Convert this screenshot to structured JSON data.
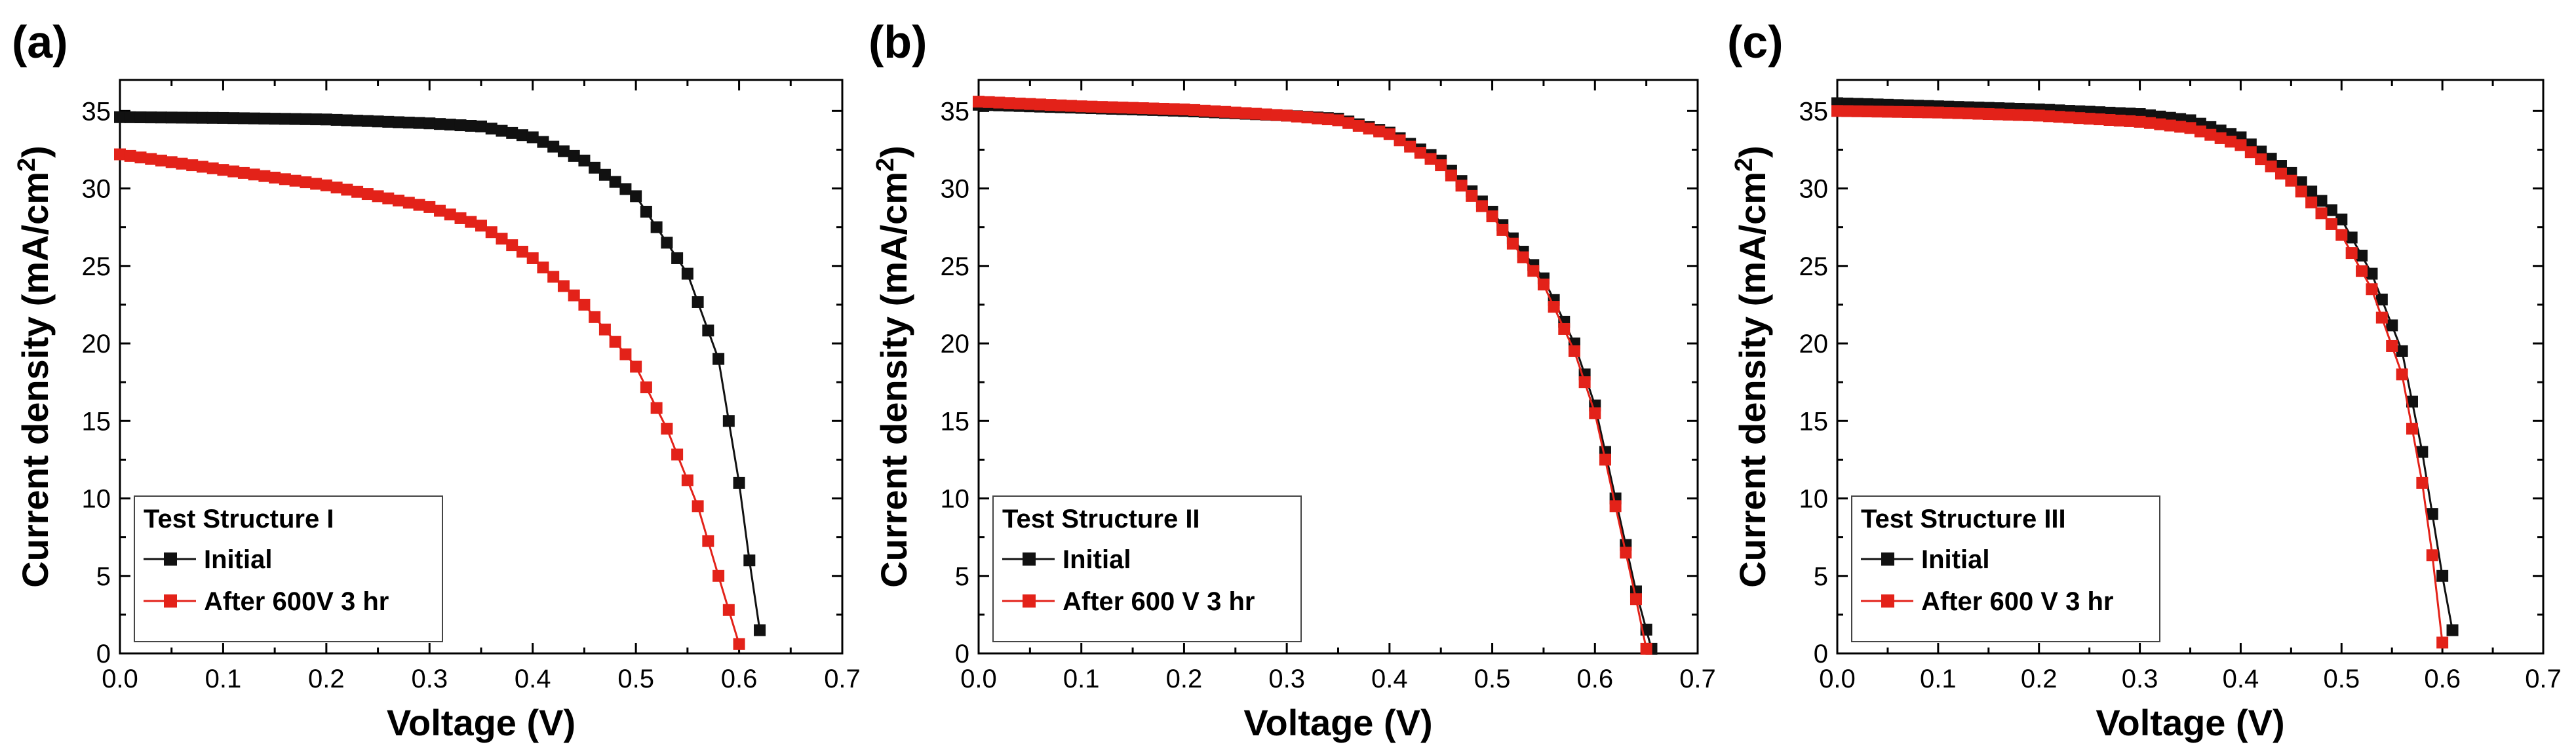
{
  "chart_data": [
    {
      "type": "line",
      "panel_label": "(a)",
      "xlabel": "Voltage (V)",
      "ylabel": "Current density (mA/cm²)",
      "ylabel_main": "Current density (mA/cm",
      "ylabel_sup": "2",
      "ylabel_tail": ")",
      "xlim": [
        0.0,
        0.7
      ],
      "ylim": [
        0,
        37
      ],
      "xticks": [
        0.0,
        0.1,
        0.2,
        0.3,
        0.4,
        0.5,
        0.6,
        0.7
      ],
      "xtick_labels": [
        "0.0",
        "0.1",
        "0.2",
        "0.3",
        "0.4",
        "0.5",
        "0.6",
        "0.7"
      ],
      "yticks": [
        0,
        5,
        10,
        15,
        20,
        25,
        30,
        35
      ],
      "ytick_labels": [
        "0",
        "5",
        "10",
        "15",
        "20",
        "25",
        "30",
        "35"
      ],
      "legend": {
        "title": "Test Structure I",
        "location": "bottom-left",
        "entries": [
          "Initial",
          "After 600V 3 hr"
        ]
      },
      "series": [
        {
          "name": "Initial",
          "color": "#111111",
          "marker": "square",
          "points": [
            [
              0.0,
              34.6
            ],
            [
              0.1,
              34.55
            ],
            [
              0.2,
              34.45
            ],
            [
              0.3,
              34.2
            ],
            [
              0.35,
              34.0
            ],
            [
              0.4,
              33.3
            ],
            [
              0.45,
              31.8
            ],
            [
              0.5,
              29.5
            ],
            [
              0.55,
              24.5
            ],
            [
              0.58,
              19.0
            ],
            [
              0.6,
              11.0
            ],
            [
              0.61,
              6.0
            ],
            [
              0.62,
              1.5
            ]
          ],
          "marker_step": 0.01
        },
        {
          "name": "After 600V 3 hr",
          "color": "#e32219",
          "marker": "square",
          "points": [
            [
              0.0,
              32.2
            ],
            [
              0.1,
              31.2
            ],
            [
              0.2,
              30.2
            ],
            [
              0.3,
              28.8
            ],
            [
              0.35,
              27.6
            ],
            [
              0.4,
              25.5
            ],
            [
              0.45,
              22.5
            ],
            [
              0.5,
              18.5
            ],
            [
              0.53,
              14.5
            ],
            [
              0.56,
              9.5
            ],
            [
              0.58,
              5.0
            ],
            [
              0.6,
              0.6
            ]
          ],
          "marker_step": 0.01
        }
      ]
    },
    {
      "type": "line",
      "panel_label": "(b)",
      "xlabel": "Voltage (V)",
      "ylabel": "Current density (mA/cm²)",
      "ylabel_main": "Current density (mA/cm",
      "ylabel_sup": "2",
      "ylabel_tail": ")",
      "xlim": [
        0.0,
        0.7
      ],
      "ylim": [
        0,
        37
      ],
      "xticks": [
        0.0,
        0.1,
        0.2,
        0.3,
        0.4,
        0.5,
        0.6,
        0.7
      ],
      "xtick_labels": [
        "0.0",
        "0.1",
        "0.2",
        "0.3",
        "0.4",
        "0.5",
        "0.6",
        "0.7"
      ],
      "yticks": [
        0,
        5,
        10,
        15,
        20,
        25,
        30,
        35
      ],
      "ytick_labels": [
        "0",
        "5",
        "10",
        "15",
        "20",
        "25",
        "30",
        "35"
      ],
      "legend": {
        "title": "Test Structure II",
        "location": "bottom-left",
        "entries": [
          "Initial",
          "After 600 V 3 hr"
        ]
      },
      "series": [
        {
          "name": "Initial",
          "color": "#111111",
          "marker": "square",
          "points": [
            [
              0.0,
              35.4
            ],
            [
              0.1,
              35.2
            ],
            [
              0.2,
              35.0
            ],
            [
              0.3,
              34.7
            ],
            [
              0.35,
              34.5
            ],
            [
              0.4,
              33.6
            ],
            [
              0.45,
              31.8
            ],
            [
              0.5,
              28.5
            ],
            [
              0.55,
              24.2
            ],
            [
              0.58,
              20.0
            ],
            [
              0.6,
              16.0
            ],
            [
              0.62,
              10.0
            ],
            [
              0.64,
              4.0
            ],
            [
              0.655,
              0.3
            ]
          ],
          "marker_step": 0.01
        },
        {
          "name": "After 600 V 3 hr",
          "color": "#e32219",
          "marker": "square",
          "points": [
            [
              0.0,
              35.6
            ],
            [
              0.1,
              35.3
            ],
            [
              0.2,
              35.1
            ],
            [
              0.3,
              34.7
            ],
            [
              0.35,
              34.4
            ],
            [
              0.4,
              33.5
            ],
            [
              0.45,
              31.5
            ],
            [
              0.5,
              28.2
            ],
            [
              0.55,
              23.8
            ],
            [
              0.58,
              19.5
            ],
            [
              0.6,
              15.5
            ],
            [
              0.62,
              9.5
            ],
            [
              0.64,
              3.5
            ],
            [
              0.65,
              0.3
            ]
          ],
          "marker_step": 0.01
        }
      ]
    },
    {
      "type": "line",
      "panel_label": "(c)",
      "xlabel": "Voltage (V)",
      "ylabel": "Current density (mA/cm²)",
      "ylabel_main": "Current density (mA/cm",
      "ylabel_sup": "2",
      "ylabel_tail": ")",
      "xlim": [
        0.0,
        0.7
      ],
      "ylim": [
        0,
        37
      ],
      "xticks": [
        0.0,
        0.1,
        0.2,
        0.3,
        0.4,
        0.5,
        0.6,
        0.7
      ],
      "xtick_labels": [
        "0.0",
        "0.1",
        "0.2",
        "0.3",
        "0.4",
        "0.5",
        "0.6",
        "0.7"
      ],
      "yticks": [
        0,
        5,
        10,
        15,
        20,
        25,
        30,
        35
      ],
      "ytick_labels": [
        "0",
        "5",
        "10",
        "15",
        "20",
        "25",
        "30",
        "35"
      ],
      "legend": {
        "title": "Test Structure III",
        "location": "bottom-left",
        "entries": [
          "Initial",
          "After 600 V 3 hr"
        ]
      },
      "series": [
        {
          "name": "Initial",
          "color": "#111111",
          "marker": "square",
          "points": [
            [
              0.0,
              35.5
            ],
            [
              0.1,
              35.3
            ],
            [
              0.2,
              35.1
            ],
            [
              0.3,
              34.8
            ],
            [
              0.35,
              34.4
            ],
            [
              0.4,
              33.3
            ],
            [
              0.45,
              31.0
            ],
            [
              0.5,
              28.0
            ],
            [
              0.53,
              24.5
            ],
            [
              0.56,
              19.5
            ],
            [
              0.58,
              13.0
            ],
            [
              0.6,
              5.0
            ],
            [
              0.61,
              1.5
            ]
          ],
          "marker_step": 0.01
        },
        {
          "name": "After 600 V 3 hr",
          "color": "#e32219",
          "marker": "square",
          "points": [
            [
              0.0,
              35.0
            ],
            [
              0.1,
              34.9
            ],
            [
              0.2,
              34.7
            ],
            [
              0.3,
              34.3
            ],
            [
              0.35,
              33.9
            ],
            [
              0.4,
              32.8
            ],
            [
              0.45,
              30.5
            ],
            [
              0.5,
              27.0
            ],
            [
              0.53,
              23.5
            ],
            [
              0.56,
              18.0
            ],
            [
              0.58,
              11.0
            ],
            [
              0.595,
              4.0
            ],
            [
              0.6,
              0.7
            ]
          ],
          "marker_step": 0.01
        }
      ]
    }
  ]
}
